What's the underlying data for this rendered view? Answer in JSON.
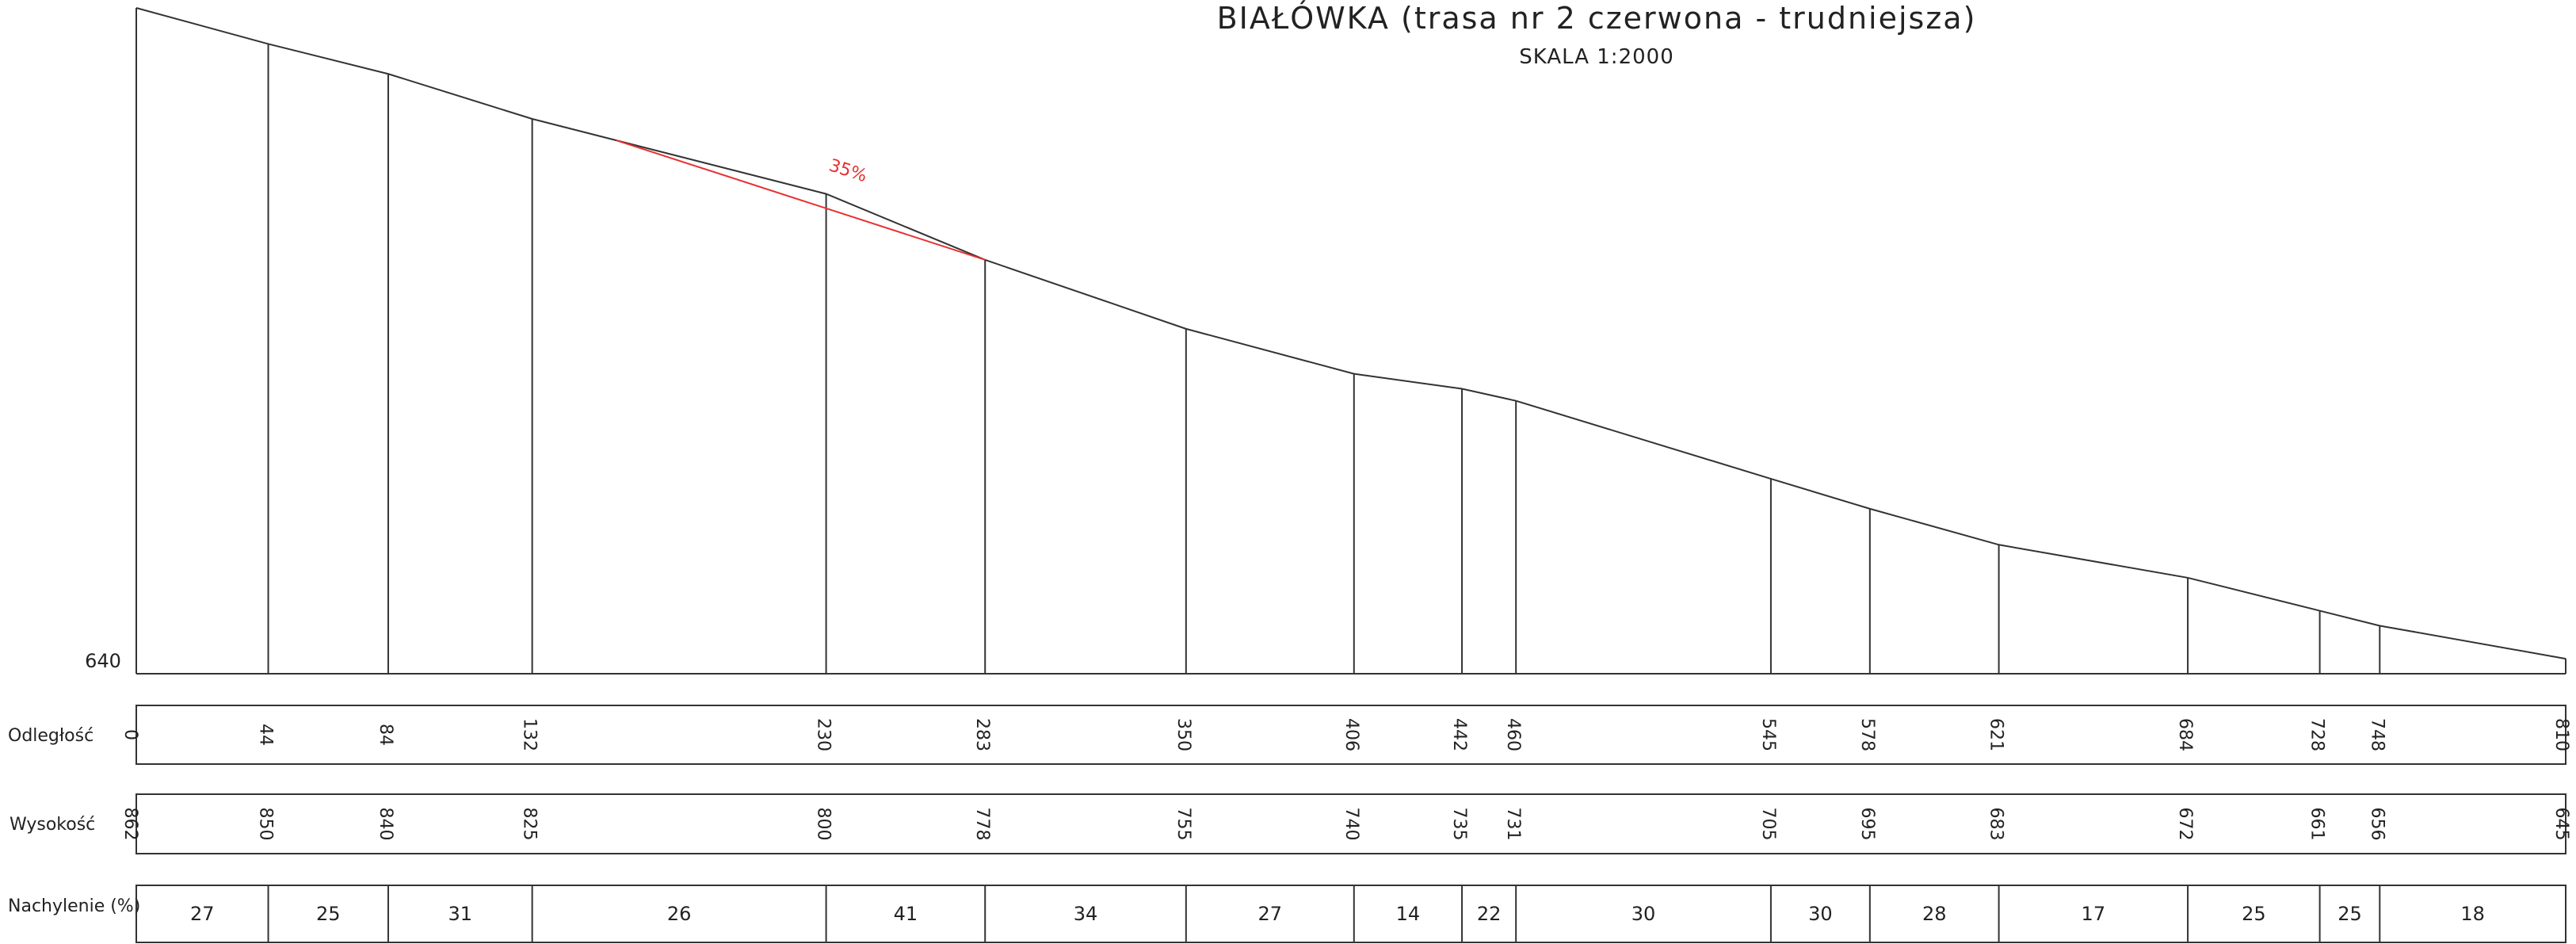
{
  "title": "BIAŁÓWKA  (trasa nr 2 czerwona - trudniejsza)",
  "subtitle": "SKALA 1:2000",
  "base_label": "640",
  "rows": {
    "distance_label": "Odległość",
    "elevation_label": "Wysokość",
    "slope_label": "Nachylenie (%)"
  },
  "annotation": {
    "text": "35%",
    "color": "#e83030",
    "from_distance": 160,
    "to_distance": 283
  },
  "chart_data": {
    "type": "line",
    "title": "BIAŁÓWKA  (trasa nr 2 czerwona - trudniejsza)",
    "xlabel": "Odległość",
    "ylabel": "Wysokość",
    "ybase": 640,
    "x": [
      0,
      44,
      84,
      132,
      230,
      283,
      350,
      406,
      442,
      460,
      545,
      578,
      621,
      684,
      728,
      748,
      810
    ],
    "y": [
      862,
      850,
      840,
      825,
      800,
      778,
      755,
      740,
      735,
      731,
      705,
      695,
      683,
      672,
      661,
      656,
      645
    ],
    "slopes": [
      27,
      25,
      31,
      26,
      41,
      34,
      27,
      14,
      22,
      30,
      30,
      28,
      17,
      25,
      25,
      18
    ],
    "xlim": [
      0,
      810
    ],
    "ylim": [
      640,
      862
    ]
  }
}
